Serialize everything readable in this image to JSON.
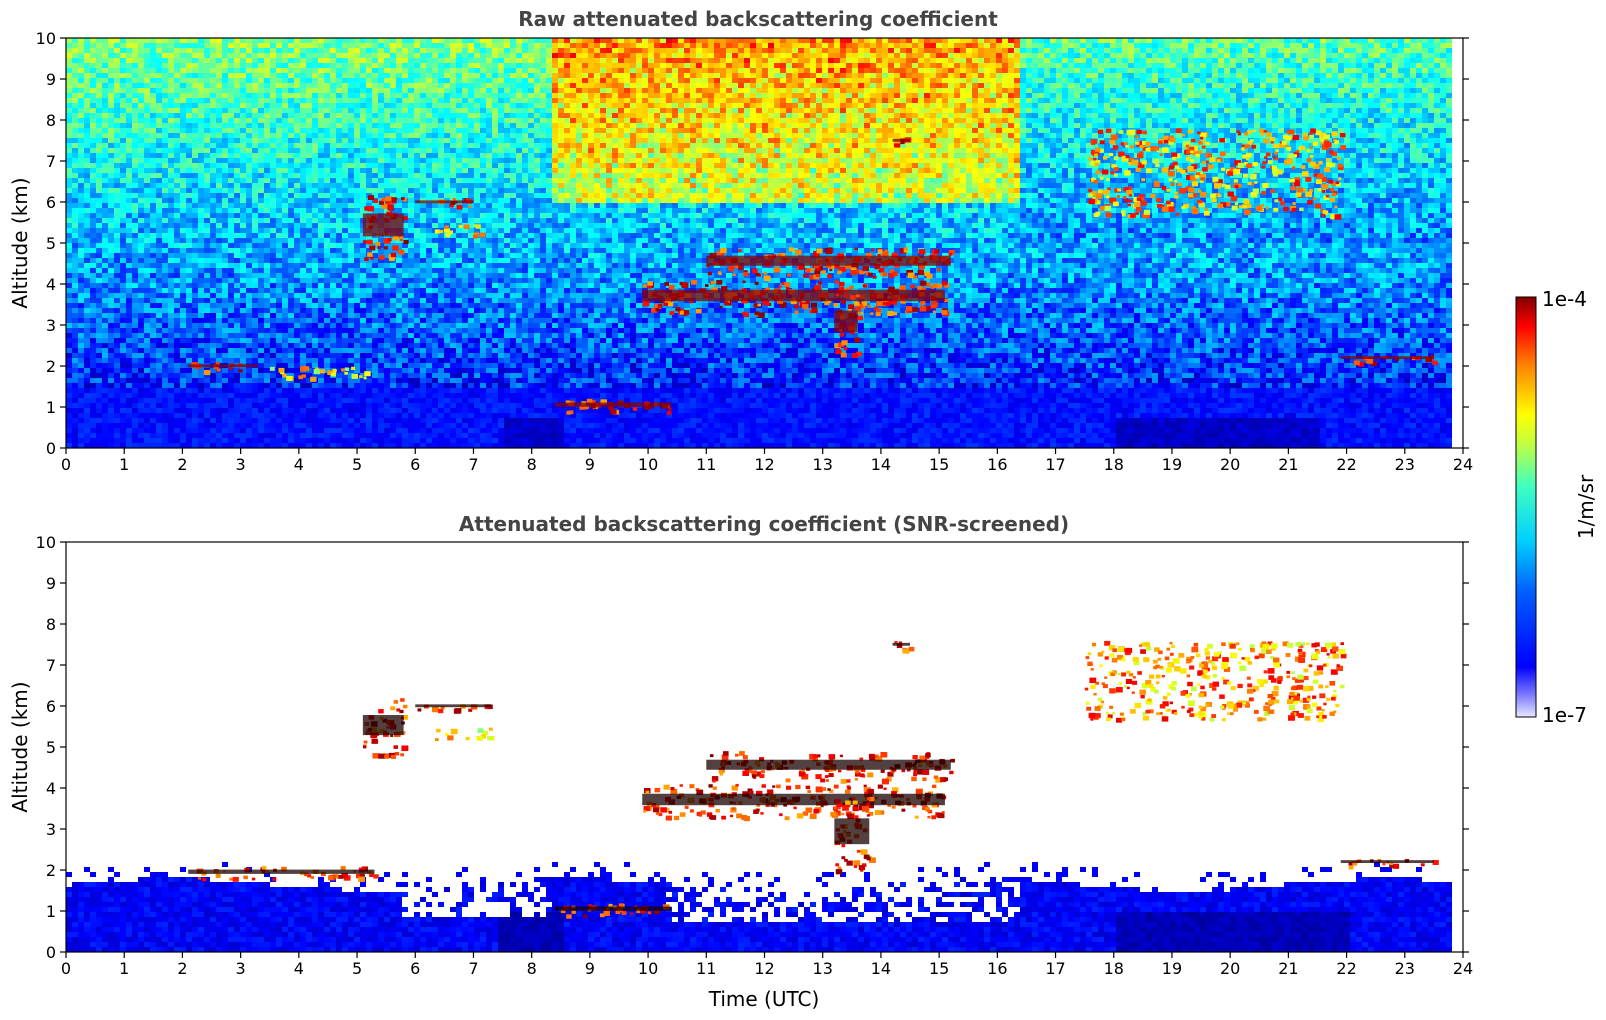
{
  "chart_data": [
    {
      "type": "heatmap",
      "title": "Raw attenuated backscattering coefficient",
      "ylabel": "Altitude (km)",
      "xlabel": "",
      "xlim": [
        0,
        24
      ],
      "ylim": [
        0,
        10
      ],
      "x_ticks": [
        "0",
        "1",
        "2",
        "3",
        "4",
        "5",
        "6",
        "7",
        "8",
        "9",
        "10",
        "11",
        "12",
        "13",
        "14",
        "15",
        "16",
        "17",
        "18",
        "19",
        "20",
        "21",
        "22",
        "23",
        "24"
      ],
      "y_ticks": [
        "0",
        "1",
        "2",
        "3",
        "4",
        "5",
        "6",
        "7",
        "8",
        "9",
        "10"
      ],
      "grid": false,
      "background_field": "noisy backscatter increasing in noise level with altitude; dense boundary layer 0-1.5 km",
      "features": [
        {
          "name": "boundary layer",
          "t": [
            0,
            23.8
          ],
          "alt": [
            0,
            1.5
          ],
          "level": "low"
        },
        {
          "name": "aerosol layer",
          "t": [
            2.1,
            3.3
          ],
          "alt": [
            1.9,
            2.1
          ],
          "level": "high"
        },
        {
          "name": "aerosol layer",
          "t": [
            3.5,
            5.3
          ],
          "alt": [
            1.7,
            2.0
          ],
          "level": "mid"
        },
        {
          "name": "cloud",
          "t": [
            5.1,
            5.8
          ],
          "alt": [
            4.6,
            6.2
          ],
          "level": "high"
        },
        {
          "name": "cloud",
          "t": [
            6.0,
            7.0
          ],
          "alt": [
            5.9,
            6.1
          ],
          "level": "high"
        },
        {
          "name": "cloud",
          "t": [
            6.2,
            7.2
          ],
          "alt": [
            5.2,
            5.5
          ],
          "level": "mid"
        },
        {
          "name": "cloud",
          "t": [
            8.4,
            10.4
          ],
          "alt": [
            0.9,
            1.2
          ],
          "level": "high"
        },
        {
          "name": "cloud",
          "t": [
            9.9,
            15.1
          ],
          "alt": [
            3.3,
            4.1
          ],
          "level": "high"
        },
        {
          "name": "cloud",
          "t": [
            11.0,
            15.2
          ],
          "alt": [
            4.2,
            4.9
          ],
          "level": "high"
        },
        {
          "name": "virga",
          "t": [
            13.2,
            13.6
          ],
          "alt": [
            2.3,
            3.8
          ],
          "level": "high"
        },
        {
          "name": "cloud",
          "t": [
            14.2,
            14.5
          ],
          "alt": [
            7.4,
            7.6
          ],
          "level": "high"
        },
        {
          "name": "cirrus",
          "t": [
            17.5,
            21.9
          ],
          "alt": [
            5.7,
            7.8
          ],
          "level": "high"
        },
        {
          "name": "aerosol layer",
          "t": [
            21.9,
            23.5
          ],
          "alt": [
            2.1,
            2.3
          ],
          "level": "high"
        }
      ]
    },
    {
      "type": "heatmap",
      "title": "Attenuated backscattering coefficient (SNR-screened)",
      "ylabel": "Altitude (km)",
      "xlabel": "Time (UTC)",
      "xlim": [
        0,
        24
      ],
      "ylim": [
        0,
        10
      ],
      "x_ticks": [
        "0",
        "1",
        "2",
        "3",
        "4",
        "5",
        "6",
        "7",
        "8",
        "9",
        "10",
        "11",
        "12",
        "13",
        "14",
        "15",
        "16",
        "17",
        "18",
        "19",
        "20",
        "21",
        "22",
        "23",
        "24"
      ],
      "y_ticks": [
        "0",
        "1",
        "2",
        "3",
        "4",
        "5",
        "6",
        "7",
        "8",
        "9",
        "10"
      ],
      "grid": false,
      "background_field": "white where SNR below threshold; boundary layer retained 0-2 km",
      "features": [
        {
          "name": "boundary layer",
          "t": [
            0,
            23.8
          ],
          "alt": [
            0,
            1.9
          ],
          "level": "low"
        },
        {
          "name": "aerosol layer",
          "t": [
            2.1,
            5.3
          ],
          "alt": [
            1.8,
            2.1
          ],
          "level": "high"
        },
        {
          "name": "cloud",
          "t": [
            5.1,
            5.8
          ],
          "alt": [
            4.8,
            6.2
          ],
          "level": "high"
        },
        {
          "name": "cloud",
          "t": [
            6.0,
            7.3
          ],
          "alt": [
            5.9,
            6.1
          ],
          "level": "high"
        },
        {
          "name": "cloud",
          "t": [
            6.3,
            7.3
          ],
          "alt": [
            5.2,
            5.5
          ],
          "level": "mid"
        },
        {
          "name": "cloud",
          "t": [
            8.4,
            10.4
          ],
          "alt": [
            0.9,
            1.2
          ],
          "level": "high"
        },
        {
          "name": "cloud",
          "t": [
            9.9,
            15.1
          ],
          "alt": [
            3.3,
            4.1
          ],
          "level": "high"
        },
        {
          "name": "cloud",
          "t": [
            11.0,
            15.2
          ],
          "alt": [
            4.2,
            4.9
          ],
          "level": "high"
        },
        {
          "name": "virga",
          "t": [
            13.2,
            13.8
          ],
          "alt": [
            2.0,
            3.8
          ],
          "level": "high"
        },
        {
          "name": "cloud",
          "t": [
            14.2,
            14.5
          ],
          "alt": [
            7.4,
            7.6
          ],
          "level": "high"
        },
        {
          "name": "cirrus",
          "t": [
            17.5,
            21.9
          ],
          "alt": [
            5.7,
            7.6
          ],
          "level": "high"
        },
        {
          "name": "aerosol layer",
          "t": [
            21.9,
            23.5
          ],
          "alt": [
            2.1,
            2.3
          ],
          "level": "high"
        }
      ]
    }
  ],
  "colorbar": {
    "label": "1/m/sr",
    "min_label": "1e-7",
    "max_label": "1e-4",
    "scale": "log",
    "range": [
      1e-07,
      0.0001
    ],
    "colormap": "jet"
  }
}
